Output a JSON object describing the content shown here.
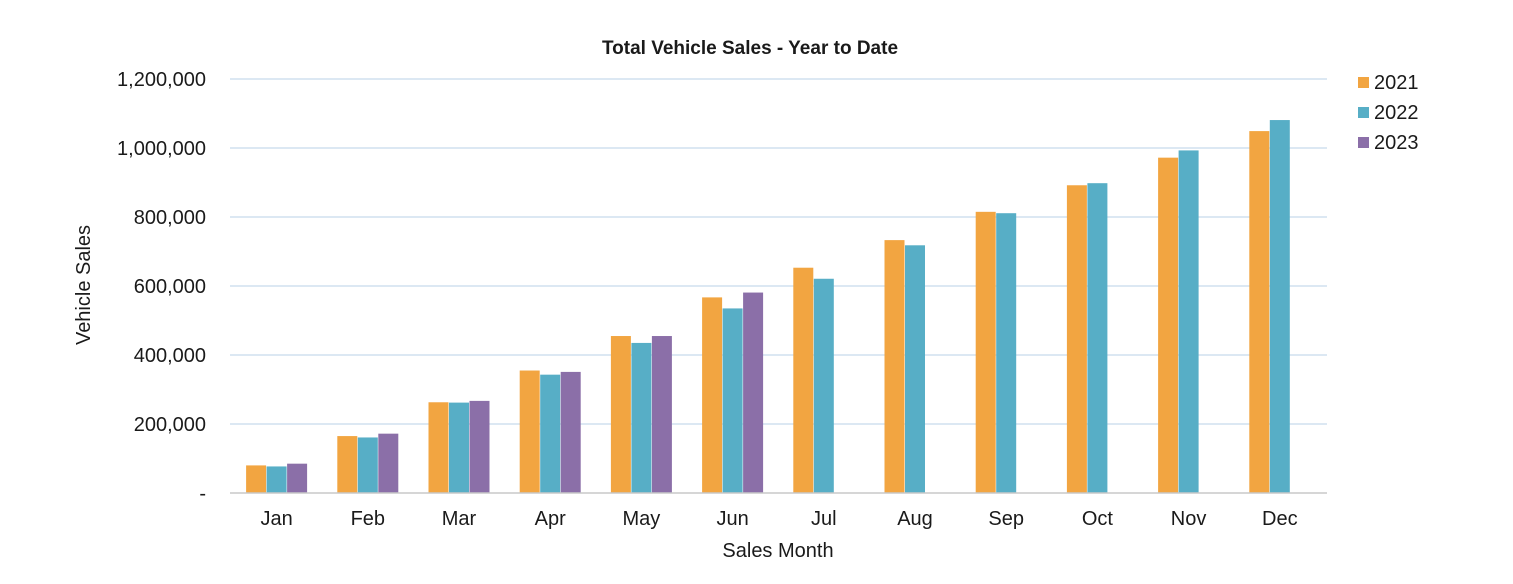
{
  "chart_data": {
    "type": "bar",
    "title": "Total Vehicle Sales - Year to Date",
    "xlabel": "Sales Month",
    "ylabel": "Vehicle Sales",
    "categories": [
      "Jan",
      "Feb",
      "Mar",
      "Apr",
      "May",
      "Jun",
      "Jul",
      "Aug",
      "Sep",
      "Oct",
      "Nov",
      "Dec"
    ],
    "series": [
      {
        "name": "2021",
        "color": "#f2a541",
        "values": [
          80000,
          165000,
          263000,
          355000,
          455000,
          567000,
          653000,
          733000,
          815000,
          892000,
          972000,
          1049000
        ]
      },
      {
        "name": "2022",
        "color": "#57aec6",
        "values": [
          77000,
          161000,
          262000,
          343000,
          435000,
          535000,
          621000,
          718000,
          811000,
          898000,
          993000,
          1081000
        ]
      },
      {
        "name": "2023",
        "color": "#8b6fa8",
        "values": [
          85000,
          172000,
          267000,
          351000,
          455000,
          581000,
          null,
          null,
          null,
          null,
          null,
          null
        ]
      }
    ],
    "ylim": [
      0,
      1200000
    ],
    "yticks": [
      0,
      200000,
      400000,
      600000,
      800000,
      1000000,
      1200000
    ],
    "ytick_labels": [
      "-",
      "200,000",
      "400,000",
      "600,000",
      "800,000",
      "1,000,000",
      "1,200,000"
    ],
    "grid": true,
    "gridline_color": "#c6d9ec",
    "legend_position": "top-right"
  }
}
